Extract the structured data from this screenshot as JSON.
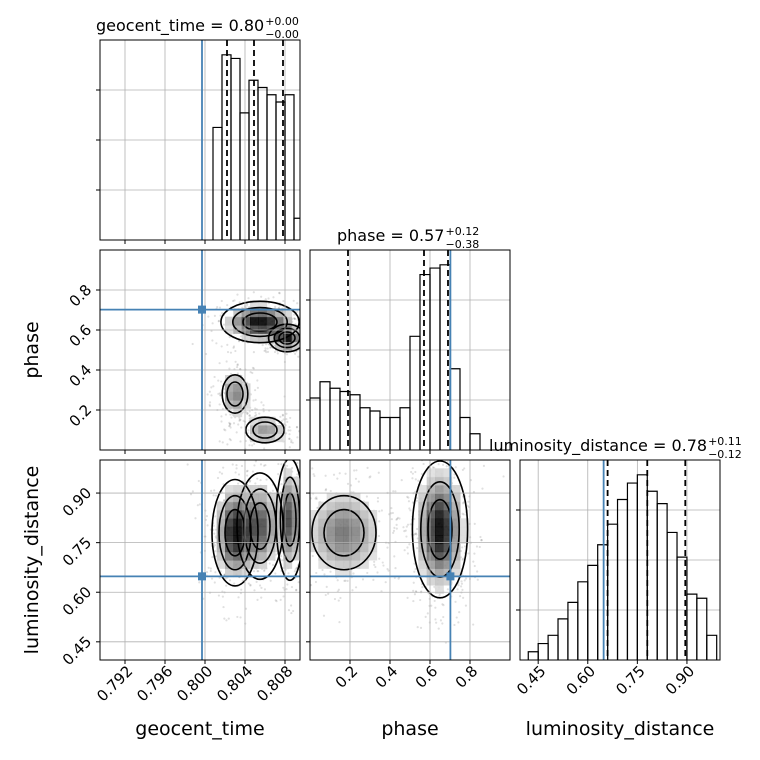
{
  "chart_data": {
    "type": "corner",
    "params": [
      "geocent_time",
      "phase",
      "luminosity_distance"
    ],
    "truths": {
      "geocent_time": 0.7997,
      "phase": 0.702,
      "luminosity_distance": 0.648
    },
    "grid": true,
    "panels": [
      {
        "id": "hist-geocent_time",
        "type": "histogram",
        "x_param": "geocent_time",
        "title": {
          "main": "geocent_time = 0.80",
          "sup": "+0.00",
          "sub": "−0.00"
        },
        "xlim": [
          0.7895,
          0.8095
        ],
        "quantiles": [
          0.8022,
          0.8049,
          0.8078
        ],
        "bins": [
          {
            "x0": 0.8008,
            "x1": 0.8017,
            "count": 31
          },
          {
            "x0": 0.8017,
            "x1": 0.8026,
            "count": 51
          },
          {
            "x0": 0.8026,
            "x1": 0.8035,
            "count": 50
          },
          {
            "x0": 0.8035,
            "x1": 0.8044,
            "count": 35
          },
          {
            "x0": 0.8044,
            "x1": 0.8053,
            "count": 44
          },
          {
            "x0": 0.8053,
            "x1": 0.8062,
            "count": 42
          },
          {
            "x0": 0.8062,
            "x1": 0.8071,
            "count": 40
          },
          {
            "x0": 0.8071,
            "x1": 0.808,
            "count": 38
          },
          {
            "x0": 0.808,
            "x1": 0.8089,
            "count": 40
          },
          {
            "x0": 0.8089,
            "x1": 0.8098,
            "count": 6
          }
        ]
      },
      {
        "id": "hist-phase",
        "type": "histogram",
        "x_param": "phase",
        "title": {
          "main": "phase = 0.57",
          "sup": "+0.12",
          "sub": "−0.38"
        },
        "xlim": [
          0.0,
          1.0
        ],
        "quantiles": [
          0.19,
          0.57,
          0.69
        ],
        "bins": [
          {
            "x0": 0.0,
            "x1": 0.05,
            "count": 16
          },
          {
            "x0": 0.05,
            "x1": 0.1,
            "count": 21
          },
          {
            "x0": 0.1,
            "x1": 0.15,
            "count": 19
          },
          {
            "x0": 0.15,
            "x1": 0.2,
            "count": 18
          },
          {
            "x0": 0.2,
            "x1": 0.25,
            "count": 17
          },
          {
            "x0": 0.25,
            "x1": 0.3,
            "count": 13
          },
          {
            "x0": 0.3,
            "x1": 0.35,
            "count": 12
          },
          {
            "x0": 0.35,
            "x1": 0.4,
            "count": 10
          },
          {
            "x0": 0.4,
            "x1": 0.45,
            "count": 10
          },
          {
            "x0": 0.45,
            "x1": 0.5,
            "count": 13
          },
          {
            "x0": 0.5,
            "x1": 0.55,
            "count": 35
          },
          {
            "x0": 0.55,
            "x1": 0.6,
            "count": 54
          },
          {
            "x0": 0.6,
            "x1": 0.65,
            "count": 56
          },
          {
            "x0": 0.65,
            "x1": 0.7,
            "count": 57
          },
          {
            "x0": 0.7,
            "x1": 0.75,
            "count": 25
          },
          {
            "x0": 0.75,
            "x1": 0.8,
            "count": 10
          },
          {
            "x0": 0.8,
            "x1": 0.85,
            "count": 5
          }
        ]
      },
      {
        "id": "hist-luminosity_distance",
        "type": "histogram",
        "x_param": "luminosity_distance",
        "title": {
          "main": "luminosity_distance = 0.78",
          "sup": "+0.11",
          "sub": "−0.12"
        },
        "xlim": [
          0.395,
          1.0
        ],
        "quantiles": [
          0.66,
          0.78,
          0.895
        ],
        "bins": [
          {
            "x0": 0.42,
            "x1": 0.45,
            "count": 2
          },
          {
            "x0": 0.45,
            "x1": 0.48,
            "count": 4
          },
          {
            "x0": 0.48,
            "x1": 0.51,
            "count": 6
          },
          {
            "x0": 0.51,
            "x1": 0.54,
            "count": 10
          },
          {
            "x0": 0.54,
            "x1": 0.57,
            "count": 14
          },
          {
            "x0": 0.57,
            "x1": 0.6,
            "count": 19
          },
          {
            "x0": 0.6,
            "x1": 0.63,
            "count": 23
          },
          {
            "x0": 0.63,
            "x1": 0.66,
            "count": 28
          },
          {
            "x0": 0.66,
            "x1": 0.69,
            "count": 33
          },
          {
            "x0": 0.69,
            "x1": 0.72,
            "count": 39
          },
          {
            "x0": 0.72,
            "x1": 0.75,
            "count": 43
          },
          {
            "x0": 0.75,
            "x1": 0.78,
            "count": 45
          },
          {
            "x0": 0.78,
            "x1": 0.81,
            "count": 41
          },
          {
            "x0": 0.81,
            "x1": 0.84,
            "count": 38
          },
          {
            "x0": 0.84,
            "x1": 0.87,
            "count": 31
          },
          {
            "x0": 0.87,
            "x1": 0.9,
            "count": 25
          },
          {
            "x0": 0.9,
            "x1": 0.93,
            "count": 16
          },
          {
            "x0": 0.93,
            "x1": 0.96,
            "count": 15
          },
          {
            "x0": 0.96,
            "x1": 0.99,
            "count": 6
          }
        ]
      },
      {
        "id": "scatter-geocent_time-phase",
        "type": "density_contour",
        "x_param": "geocent_time",
        "y_param": "phase",
        "xlim": [
          0.7895,
          0.8095
        ],
        "ylim": [
          0.0,
          1.0
        ],
        "ylabel": "phase",
        "yticks": [
          0.2,
          0.4,
          0.6,
          0.8
        ],
        "blobs": [
          {
            "x": 0.8055,
            "y": 0.64,
            "sx": 0.0017,
            "sy": 0.045,
            "w": 1.0
          },
          {
            "x": 0.8082,
            "y": 0.56,
            "sx": 0.0008,
            "sy": 0.03,
            "w": 0.9
          },
          {
            "x": 0.803,
            "y": 0.28,
            "sx": 0.0008,
            "sy": 0.06,
            "w": 0.5
          },
          {
            "x": 0.806,
            "y": 0.1,
            "sx": 0.0012,
            "sy": 0.04,
            "w": 0.4
          }
        ]
      },
      {
        "id": "scatter-geocent_time-luminosity_distance",
        "type": "density_contour",
        "x_param": "geocent_time",
        "y_param": "luminosity_distance",
        "xlim": [
          0.7895,
          0.8095
        ],
        "ylim": [
          0.395,
          1.0
        ],
        "ylabel": "luminosity_distance",
        "xlabel": "geocent_time",
        "yticks": [
          0.45,
          0.6,
          0.75,
          0.9
        ],
        "xticks": [
          0.792,
          0.796,
          0.8,
          0.804,
          0.808
        ],
        "xticklabels": [
          "0.792",
          "0.796",
          "0.800",
          "0.804",
          "0.808"
        ],
        "blobs": [
          {
            "x": 0.803,
            "y": 0.78,
            "sx": 0.001,
            "sy": 0.07,
            "w": 1.0
          },
          {
            "x": 0.8055,
            "y": 0.8,
            "sx": 0.001,
            "sy": 0.07,
            "w": 0.7
          },
          {
            "x": 0.8085,
            "y": 0.82,
            "sx": 0.0006,
            "sy": 0.08,
            "w": 0.8
          }
        ]
      },
      {
        "id": "scatter-phase-luminosity_distance",
        "type": "density_contour",
        "x_param": "phase",
        "y_param": "luminosity_distance",
        "xlim": [
          0.0,
          1.0
        ],
        "ylim": [
          0.395,
          1.0
        ],
        "xlabel": "phase",
        "xticks": [
          0.2,
          0.4,
          0.6,
          0.8
        ],
        "blobs": [
          {
            "x": 0.65,
            "y": 0.79,
            "sx": 0.06,
            "sy": 0.09,
            "w": 1.0
          },
          {
            "x": 0.17,
            "y": 0.78,
            "sx": 0.1,
            "sy": 0.07,
            "w": 0.55
          }
        ]
      }
    ],
    "luminosity_distance_xticks": [
      0.45,
      0.6,
      0.75,
      0.9
    ],
    "luminosity_distance_xlabel": "luminosity_distance",
    "colors": {
      "truth": "#4682b4",
      "line": "#000000",
      "grid": "#b0b0b0"
    }
  }
}
